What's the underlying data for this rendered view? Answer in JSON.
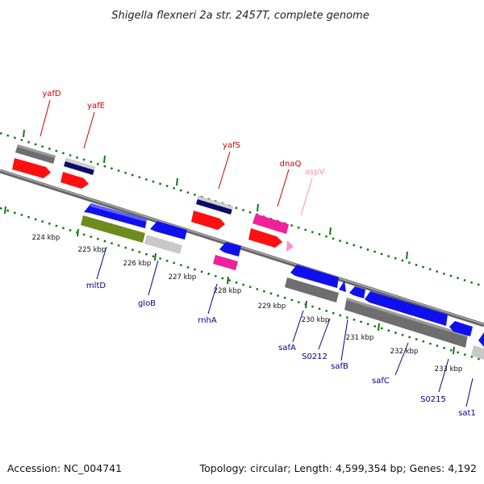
{
  "title": "Shigella flexneri 2a str. 2457T, complete genome",
  "footer": {
    "accession": "Accession: NC_004741",
    "summary": "Topology: circular; Length: 4,599,354 bp; Genes: 4,192"
  },
  "scale_labels": [
    "224 kbp",
    "225 kbp",
    "226 kbp",
    "227 kbp",
    "228 kbp",
    "229 kbp",
    "230 kbp",
    "231 kbp",
    "232 kbp",
    "233 kbp"
  ],
  "genes_above": [
    {
      "name": "yafD",
      "color": "#cc0000"
    },
    {
      "name": "yafE",
      "color": "#cc0000"
    },
    {
      "name": "yafS",
      "color": "#cc0000"
    },
    {
      "name": "dnaQ",
      "color": "#cc0000"
    },
    {
      "name": "aspV",
      "color": "#ff8cb4"
    }
  ],
  "genes_below": [
    {
      "name": "mltD",
      "color": "#00008b"
    },
    {
      "name": "gloB",
      "color": "#00008b"
    },
    {
      "name": "rnhA",
      "color": "#00008b"
    },
    {
      "name": "safA",
      "color": "#00008b"
    },
    {
      "name": "S0212",
      "color": "#00008b"
    },
    {
      "name": "safB",
      "color": "#00008b"
    },
    {
      "name": "safC",
      "color": "#00008b"
    },
    {
      "name": "S0215",
      "color": "#00008b"
    },
    {
      "name": "sat1",
      "color": "#00008b"
    }
  ],
  "feature_colors": {
    "gene_gray": "#6e6e6e",
    "light_gray": "#c8c8c8",
    "navy": "#0a0a6e",
    "red_cds": "#ff1010",
    "blue_cds": "#1010ee",
    "pink_cds": "#f0209a",
    "olive_cds": "#6e8c1e",
    "ticks": "#117711",
    "backbone": "#888888"
  }
}
